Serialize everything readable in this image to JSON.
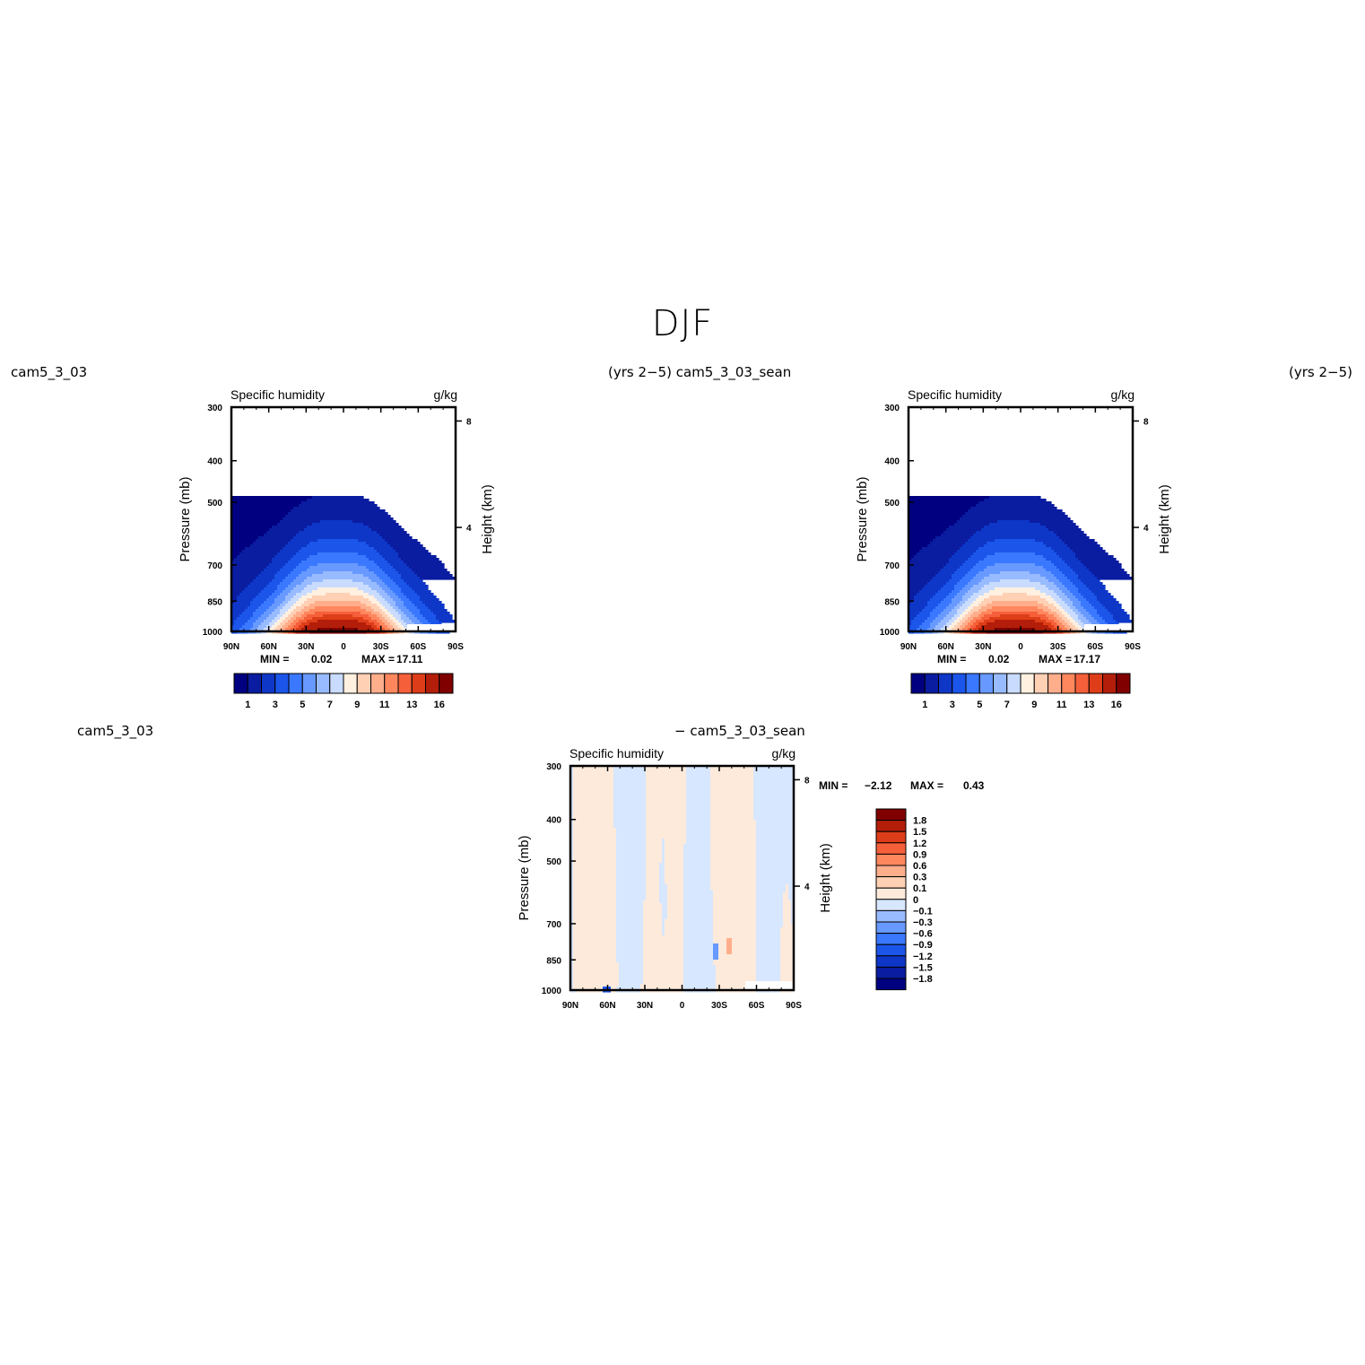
{
  "page": {
    "title": "DJF"
  },
  "colors": {
    "abs_scale": [
      "#000080",
      "#0a1ca0",
      "#0e37c8",
      "#1b55ea",
      "#3a78ff",
      "#6799ff",
      "#98bbff",
      "#c9dcff",
      "#fff0e0",
      "#ffd0b4",
      "#ffae8c",
      "#ff875e",
      "#f5603b",
      "#de3d19",
      "#b31e0a",
      "#800000"
    ],
    "diff_scale": [
      "#000080",
      "#0a1ca0",
      "#0e37c8",
      "#1b55ea",
      "#3a78ff",
      "#6799ff",
      "#98bbff",
      "#d7e7ff",
      "#feeada",
      "#ffd0b4",
      "#ffae8c",
      "#ff875e",
      "#f5603b",
      "#de3d19",
      "#b31e0a",
      "#800000"
    ]
  },
  "panels": [
    {
      "header_left": "cam5_3_03",
      "header_right": "(yrs 2−5) cam5_3_03_sean",
      "title": "Specific humidity",
      "units": "g/kg",
      "ylabel": "Pressure (mb)",
      "y2label": "Height (km)",
      "stats": {
        "min_label": "MIN =",
        "min": "0.02",
        "max_label": "MAX =",
        "max": "17.11"
      },
      "colorbar_labels": [
        "1",
        "3",
        "5",
        "7",
        "9",
        "11",
        "13",
        "16"
      ]
    },
    {
      "header_left": "",
      "header_right": "(yrs 2−5)",
      "title": "Specific humidity",
      "units": "g/kg",
      "ylabel": "Pressure (mb)",
      "y2label": "Height (km)",
      "stats": {
        "min_label": "MIN =",
        "min": "0.02",
        "max_label": "MAX =",
        "max": "17.17"
      },
      "colorbar_labels": [
        "1",
        "3",
        "5",
        "7",
        "9",
        "11",
        "13",
        "16"
      ]
    },
    {
      "header_left": "cam5_3_03",
      "header_right": "− cam5_3_03_sean",
      "title": "Specific humidity",
      "units": "g/kg",
      "ylabel": "Pressure (mb)",
      "y2label": "Height (km)",
      "stats": {
        "min_label": "MIN =",
        "min": "−2.12",
        "max_label": "MAX =",
        "max": "0.43"
      },
      "colorbar_labels": [
        "1.8",
        "1.5",
        "1.2",
        "0.9",
        "0.6",
        "0.3",
        "0.1",
        "0",
        "−0.1",
        "−0.3",
        "−0.6",
        "−0.9",
        "−1.2",
        "−1.5",
        "−1.8"
      ]
    }
  ],
  "chart_data": [
    {
      "type": "heatmap",
      "title": "Specific humidity",
      "units": "g/kg",
      "ylabel": "Pressure (mb)",
      "y2label": "Height (km)",
      "xticks": [
        "90N",
        "60N",
        "30N",
        "0",
        "30S",
        "60S",
        "90S"
      ],
      "yticks": [
        300,
        400,
        500,
        700,
        850,
        1000
      ],
      "y2ticks": [
        8,
        4
      ],
      "xlim": [
        "90N",
        "90S"
      ],
      "ylim": [
        1000,
        300
      ],
      "log_scale_y": true,
      "levels": [
        1,
        2,
        3,
        4,
        5,
        6,
        7,
        8,
        9,
        10,
        11,
        12,
        13,
        14,
        16
      ],
      "min": 0.02,
      "max": 17.11
    },
    {
      "type": "heatmap",
      "title": "Specific humidity",
      "units": "g/kg",
      "ylabel": "Pressure (mb)",
      "y2label": "Height (km)",
      "xticks": [
        "90N",
        "60N",
        "30N",
        "0",
        "30S",
        "60S",
        "90S"
      ],
      "yticks": [
        300,
        400,
        500,
        700,
        850,
        1000
      ],
      "y2ticks": [
        8,
        4
      ],
      "xlim": [
        "90N",
        "90S"
      ],
      "ylim": [
        1000,
        300
      ],
      "log_scale_y": true,
      "levels": [
        1,
        2,
        3,
        4,
        5,
        6,
        7,
        8,
        9,
        10,
        11,
        12,
        13,
        14,
        16
      ],
      "min": 0.02,
      "max": 17.17
    },
    {
      "type": "heatmap",
      "title": "Specific humidity",
      "units": "g/kg",
      "ylabel": "Pressure (mb)",
      "y2label": "Height (km)",
      "xticks": [
        "90N",
        "60N",
        "30N",
        "0",
        "30S",
        "60S",
        "90S"
      ],
      "yticks": [
        300,
        400,
        500,
        700,
        850,
        1000
      ],
      "y2ticks": [
        8,
        4
      ],
      "xlim": [
        "90N",
        "90S"
      ],
      "ylim": [
        1000,
        300
      ],
      "log_scale_y": true,
      "levels": [
        -1.8,
        -1.5,
        -1.2,
        -0.9,
        -0.6,
        -0.3,
        -0.1,
        0,
        0.1,
        0.3,
        0.6,
        0.9,
        1.2,
        1.5,
        1.8
      ],
      "min": -2.12,
      "max": 0.43
    }
  ]
}
